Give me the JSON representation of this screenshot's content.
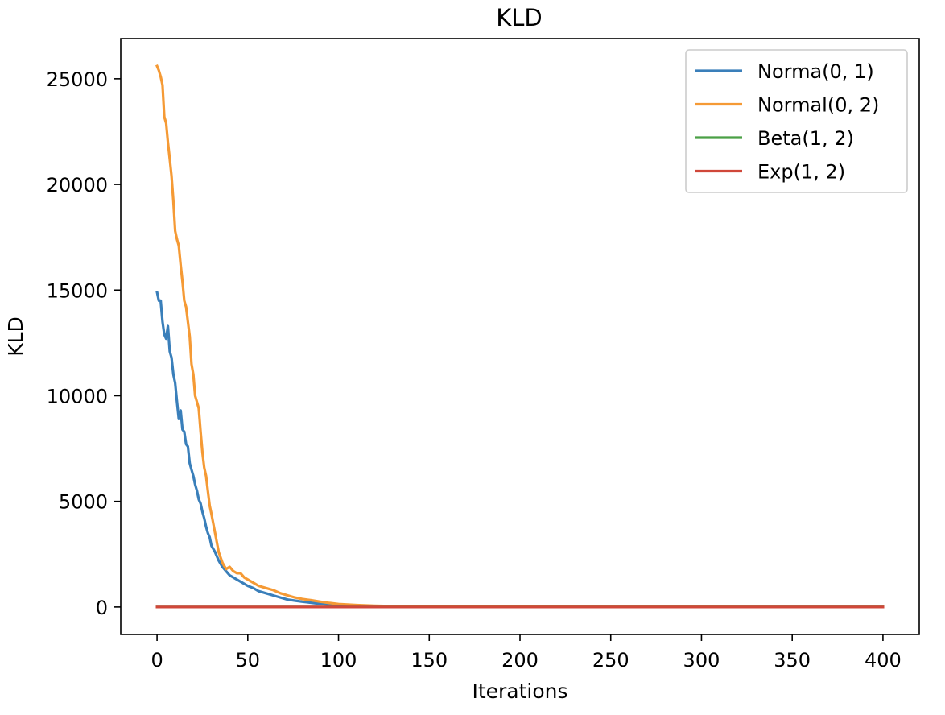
{
  "chart_data": {
    "type": "line",
    "title": "KLD",
    "xlabel": "Iterations",
    "ylabel": "KLD",
    "xlim": [
      -20,
      420
    ],
    "ylim": [
      -1300,
      26900
    ],
    "xticks": [
      0,
      50,
      100,
      150,
      200,
      250,
      300,
      350,
      400
    ],
    "yticks": [
      0,
      5000,
      10000,
      15000,
      20000,
      25000
    ],
    "grid": false,
    "legend_position": "top-right",
    "series": [
      {
        "name": "Norma(0, 1)",
        "color": "#3a7fba",
        "points": [
          [
            0,
            14900
          ],
          [
            1,
            14500
          ],
          [
            2,
            14500
          ],
          [
            3,
            13500
          ],
          [
            4,
            12900
          ],
          [
            5,
            12700
          ],
          [
            6,
            13300
          ],
          [
            7,
            12100
          ],
          [
            8,
            11800
          ],
          [
            9,
            11000
          ],
          [
            10,
            10600
          ],
          [
            11,
            9700
          ],
          [
            12,
            8900
          ],
          [
            13,
            9300
          ],
          [
            14,
            8400
          ],
          [
            15,
            8300
          ],
          [
            16,
            7700
          ],
          [
            17,
            7600
          ],
          [
            18,
            6800
          ],
          [
            19,
            6500
          ],
          [
            20,
            6200
          ],
          [
            21,
            5800
          ],
          [
            22,
            5500
          ],
          [
            23,
            5100
          ],
          [
            24,
            4900
          ],
          [
            25,
            4500
          ],
          [
            26,
            4200
          ],
          [
            27,
            3800
          ],
          [
            28,
            3500
          ],
          [
            29,
            3300
          ],
          [
            30,
            2900
          ],
          [
            32,
            2600
          ],
          [
            34,
            2200
          ],
          [
            36,
            1900
          ],
          [
            38,
            1700
          ],
          [
            40,
            1500
          ],
          [
            42,
            1400
          ],
          [
            44,
            1300
          ],
          [
            46,
            1200
          ],
          [
            48,
            1100
          ],
          [
            50,
            1000
          ],
          [
            53,
            900
          ],
          [
            56,
            750
          ],
          [
            60,
            650
          ],
          [
            64,
            550
          ],
          [
            68,
            450
          ],
          [
            72,
            350
          ],
          [
            76,
            300
          ],
          [
            80,
            250
          ],
          [
            85,
            200
          ],
          [
            90,
            150
          ],
          [
            95,
            100
          ],
          [
            100,
            70
          ],
          [
            110,
            50
          ],
          [
            120,
            35
          ],
          [
            130,
            25
          ],
          [
            150,
            15
          ],
          [
            200,
            8
          ],
          [
            250,
            5
          ],
          [
            300,
            4
          ],
          [
            350,
            3
          ],
          [
            400,
            3
          ]
        ]
      },
      {
        "name": "Normal(0, 2)",
        "color": "#f59a35",
        "points": [
          [
            0,
            25600
          ],
          [
            1,
            25400
          ],
          [
            2,
            25100
          ],
          [
            3,
            24700
          ],
          [
            4,
            23200
          ],
          [
            5,
            22900
          ],
          [
            6,
            22000
          ],
          [
            7,
            21200
          ],
          [
            8,
            20400
          ],
          [
            9,
            19200
          ],
          [
            10,
            17800
          ],
          [
            11,
            17400
          ],
          [
            12,
            17100
          ],
          [
            13,
            16200
          ],
          [
            14,
            15400
          ],
          [
            15,
            14500
          ],
          [
            16,
            14200
          ],
          [
            17,
            13500
          ],
          [
            18,
            12800
          ],
          [
            19,
            11500
          ],
          [
            20,
            11000
          ],
          [
            21,
            10000
          ],
          [
            22,
            9700
          ],
          [
            23,
            9400
          ],
          [
            24,
            8300
          ],
          [
            25,
            7300
          ],
          [
            26,
            6600
          ],
          [
            27,
            6200
          ],
          [
            28,
            5500
          ],
          [
            29,
            4800
          ],
          [
            30,
            4400
          ],
          [
            32,
            3500
          ],
          [
            34,
            2600
          ],
          [
            36,
            2100
          ],
          [
            38,
            1800
          ],
          [
            40,
            1900
          ],
          [
            42,
            1700
          ],
          [
            44,
            1600
          ],
          [
            46,
            1600
          ],
          [
            48,
            1400
          ],
          [
            50,
            1300
          ],
          [
            53,
            1150
          ],
          [
            56,
            1000
          ],
          [
            60,
            900
          ],
          [
            64,
            800
          ],
          [
            68,
            650
          ],
          [
            72,
            550
          ],
          [
            76,
            450
          ],
          [
            80,
            380
          ],
          [
            85,
            320
          ],
          [
            90,
            250
          ],
          [
            95,
            190
          ],
          [
            100,
            140
          ],
          [
            110,
            90
          ],
          [
            120,
            60
          ],
          [
            130,
            40
          ],
          [
            150,
            25
          ],
          [
            200,
            12
          ],
          [
            250,
            8
          ],
          [
            300,
            6
          ],
          [
            350,
            5
          ],
          [
            400,
            5
          ]
        ]
      },
      {
        "name": "Beta(1, 2)",
        "color": "#4ba046",
        "points": [
          [
            0,
            1
          ],
          [
            100,
            1
          ],
          [
            200,
            1
          ],
          [
            300,
            1
          ],
          [
            400,
            1
          ]
        ]
      },
      {
        "name": "Exp(1, 2)",
        "color": "#d0473a",
        "points": [
          [
            0,
            1
          ],
          [
            100,
            1
          ],
          [
            200,
            1
          ],
          [
            300,
            1
          ],
          [
            400,
            1
          ]
        ]
      }
    ]
  }
}
